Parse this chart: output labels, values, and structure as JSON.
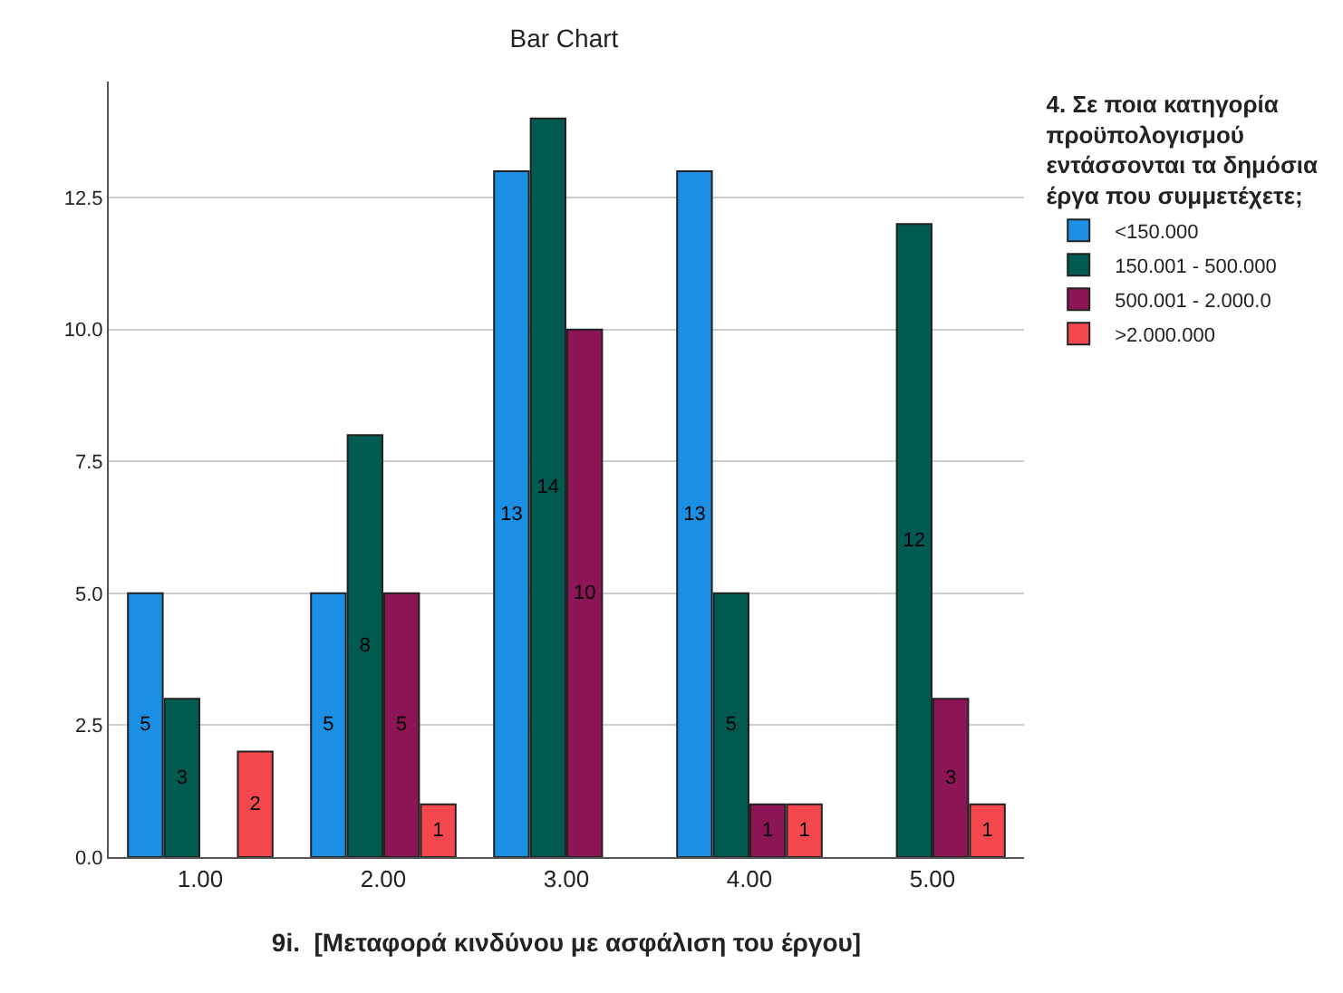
{
  "chart_data": {
    "type": "bar",
    "title": "Bar Chart",
    "xlabel": "9i.  [Μεταφορά κινδύνου με ασφάλιση του έργου]",
    "legend_title": "4. Σε ποια κατηγορία προϋπολογισμού εντάσσονται τα δημόσια έργα που συμμετέχετε;",
    "categories": [
      "1.00",
      "2.00",
      "3.00",
      "4.00",
      "5.00"
    ],
    "series": [
      {
        "name": "<150.000",
        "color": "#1a8fe3",
        "values": [
          5,
          5,
          13,
          13,
          null
        ]
      },
      {
        "name": "150.001 - 500.000",
        "color": "#005a50",
        "values": [
          3,
          8,
          14,
          5,
          12
        ]
      },
      {
        "name": "500.001 - 2.000.0",
        "color": "#8c1655",
        "values": [
          null,
          5,
          10,
          1,
          3
        ]
      },
      {
        "name": ">2.000.000",
        "color": "#f5484e",
        "values": [
          2,
          1,
          null,
          1,
          1
        ]
      }
    ],
    "ylim": [
      0,
      14.7
    ],
    "yticks": [
      {
        "value": 0,
        "label": "0.0"
      },
      {
        "value": 2.5,
        "label": "2.5"
      },
      {
        "value": 5,
        "label": "5.0"
      },
      {
        "value": 7.5,
        "label": "7.5"
      },
      {
        "value": 10,
        "label": "10.0"
      },
      {
        "value": 12.5,
        "label": "12.5"
      }
    ],
    "grid": "y",
    "legend": "right",
    "data_labels": true
  }
}
